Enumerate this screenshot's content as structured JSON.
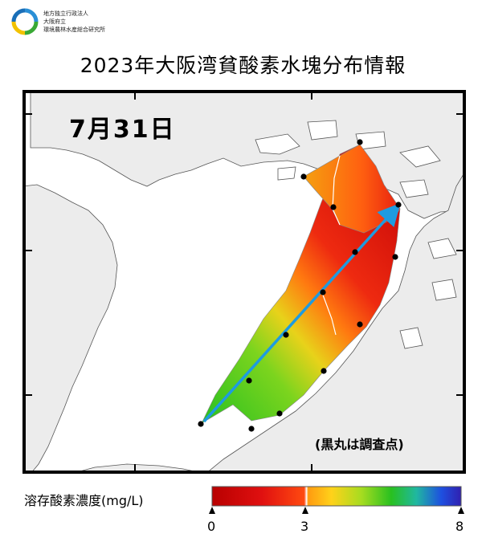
{
  "header": {
    "org_lines": [
      "地方独立行政法人",
      "大阪府立",
      "環境農林水産総合研究所"
    ],
    "title": "2023年大阪湾貧酸素水塊分布情報"
  },
  "map": {
    "date": "7月31日",
    "note": "(黒丸は調査点)",
    "survey_point_count": 13,
    "colors": {
      "land": "#ececec",
      "sea": "#ffffff",
      "frame": "#000000",
      "transect_arrow": "#1e9be0"
    }
  },
  "legend": {
    "label": "溶存酸素濃度(mg/L)",
    "ticks": [
      "0",
      "3",
      "8"
    ],
    "range": [
      0,
      8
    ],
    "threshold": 3,
    "colors": [
      "#b80000",
      "#e01010",
      "#ff4a10",
      "#ff9a10",
      "#ffd21a",
      "#a6dc20",
      "#28c020",
      "#20b8a0",
      "#1e50e0",
      "#3020b0"
    ]
  }
}
